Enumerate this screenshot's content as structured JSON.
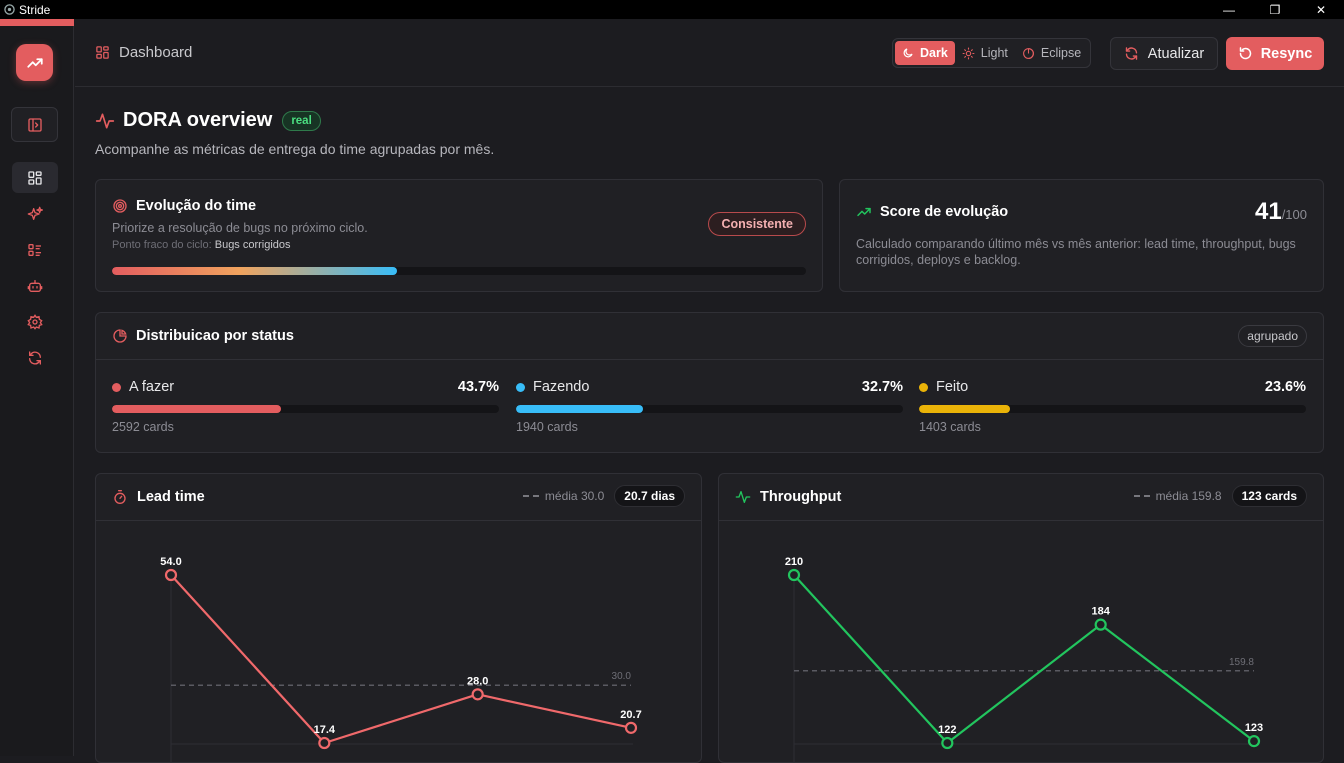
{
  "window": {
    "title": "Stride",
    "controls": [
      "—",
      "❐",
      "✕"
    ]
  },
  "breadcrumb": {
    "label": "Dashboard"
  },
  "theme": {
    "options": [
      "Dark",
      "Light",
      "Eclipse"
    ],
    "active": "Dark"
  },
  "actions": {
    "refresh_label": "Atualizar",
    "resync_label": "Resync"
  },
  "page": {
    "title": "DORA overview",
    "badge": "real",
    "subtitle": "Acompanhe as métricas de entrega do time agrupadas por mês."
  },
  "evolution": {
    "title": "Evolução do time",
    "message": "Priorize a resolução de bugs no próximo ciclo.",
    "weak_point_label": "Ponto fraco do ciclo:",
    "weak_point_value": "Bugs corrigidos",
    "status": "Consistente",
    "progress": 0.41
  },
  "score": {
    "title": "Score de evolução",
    "value": "41",
    "max": "/100",
    "description": "Calculado comparando último mês vs mês anterior: lead time, throughput, bugs corrigidos, deploys e backlog."
  },
  "status_distribution": {
    "title": "Distribuicao por status",
    "badge": "agrupado",
    "items": [
      {
        "label": "A fazer",
        "percent": "43.7%",
        "fraction": 0.437,
        "count": "2592 cards",
        "color": "#e35d5f"
      },
      {
        "label": "Fazendo",
        "percent": "32.7%",
        "fraction": 0.327,
        "count": "1940 cards",
        "color": "#38bdf8"
      },
      {
        "label": "Feito",
        "percent": "23.6%",
        "fraction": 0.236,
        "count": "1403 cards",
        "color": "#eab308"
      }
    ]
  },
  "lead_time": {
    "title": "Lead time",
    "avg_label": "média 30.0",
    "value_badge": "20.7 dias"
  },
  "throughput": {
    "title": "Throughput",
    "avg_label": "média 159.8",
    "value_badge": "123 cards"
  },
  "chart_data": [
    {
      "type": "line",
      "title": "Lead time",
      "values": [
        54.0,
        17.4,
        28.0,
        20.7
      ],
      "labels": [
        "54.0",
        "17.4",
        "28.0",
        "20.7"
      ],
      "average": 30.0,
      "average_label": "30.0",
      "color": "#f0696b",
      "ylim": [
        17.4,
        54.0
      ]
    },
    {
      "type": "line",
      "title": "Throughput",
      "values": [
        210,
        122,
        184,
        123
      ],
      "labels": [
        "210",
        "122",
        "184",
        "123"
      ],
      "average": 159.8,
      "average_label": "159.8",
      "color": "#22c55e",
      "ylim": [
        122,
        210
      ]
    }
  ],
  "icons": {
    "logo": "trending-up-icon",
    "sidebar": [
      "panel-toggle-icon",
      "dashboard-icon",
      "sparkles-icon",
      "list-icon",
      "bot-icon",
      "settings-icon",
      "refresh-icon"
    ]
  }
}
